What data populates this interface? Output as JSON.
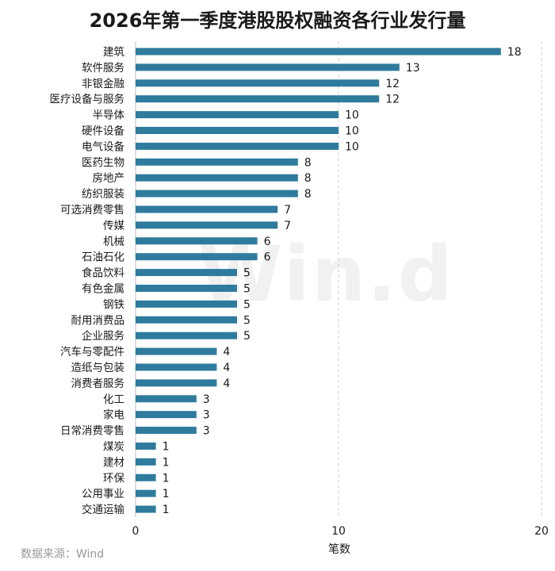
{
  "chart_data": {
    "type": "bar",
    "orientation": "horizontal",
    "title": "2026年第一季度港股股权融资各行业发行量",
    "xlabel": "笔数",
    "ylabel": "",
    "xlim": [
      0,
      20
    ],
    "xticks": [
      0,
      10,
      20
    ],
    "grid": "vertical-dashed",
    "bar_color": "#2e7b9e",
    "categories": [
      "建筑",
      "软件服务",
      "非银金融",
      "医疗设备与服务",
      "半导体",
      "硬件设备",
      "电气设备",
      "医药生物",
      "房地产",
      "纺织服装",
      "可选消费零售",
      "传媒",
      "机械",
      "石油石化",
      "食品饮料",
      "有色金属",
      "钢铁",
      "耐用消费品",
      "企业服务",
      "汽车与零配件",
      "造纸与包装",
      "消费者服务",
      "化工",
      "家电",
      "日常消费零售",
      "煤炭",
      "建材",
      "环保",
      "公用事业",
      "交通运输"
    ],
    "values": [
      18,
      13,
      12,
      12,
      10,
      10,
      10,
      8,
      8,
      8,
      7,
      7,
      6,
      6,
      5,
      5,
      5,
      5,
      5,
      4,
      4,
      4,
      3,
      3,
      3,
      1,
      1,
      1,
      1,
      1
    ]
  },
  "source_note": "数据来源：Wind",
  "watermark_text": "Win.d"
}
